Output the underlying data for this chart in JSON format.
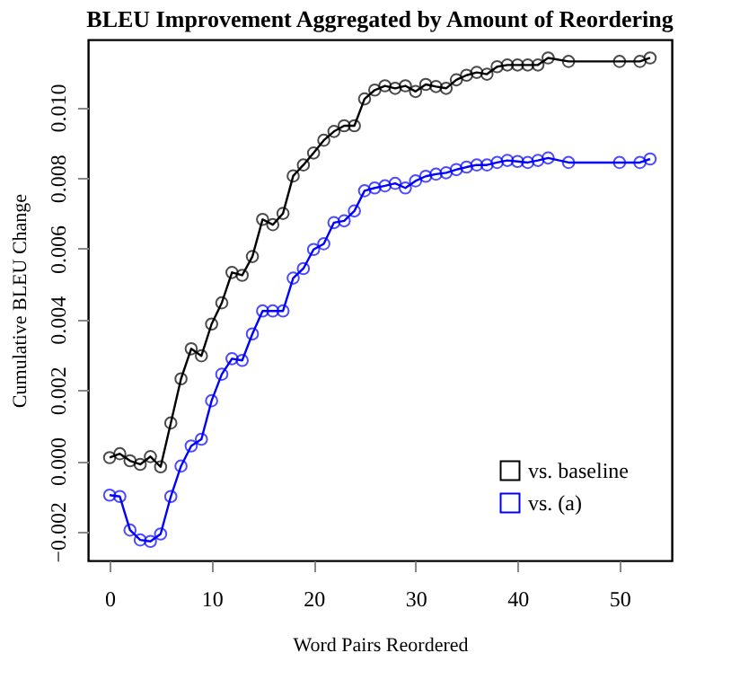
{
  "chart_data": {
    "type": "line",
    "title": "BLEU Improvement Aggregated by Amount of Reordering",
    "xlabel": "Word Pairs Reordered",
    "ylabel": "Cumulative BLEU Change",
    "x": [
      0,
      1,
      2,
      3,
      4,
      5,
      6,
      7,
      8,
      9,
      10,
      11,
      12,
      13,
      14,
      15,
      16,
      17,
      18,
      19,
      20,
      21,
      22,
      23,
      24,
      25,
      26,
      27,
      28,
      29,
      30,
      31,
      32,
      33,
      34,
      35,
      36,
      37,
      38,
      39,
      40,
      41,
      42,
      43,
      45,
      50,
      52,
      53
    ],
    "series": [
      {
        "name": "vs. baseline",
        "color": "#000000",
        "values": [
          9e-05,
          0.0002,
          0.0,
          -0.0001,
          0.00012,
          -0.00017,
          0.00107,
          0.00232,
          0.00317,
          0.00297,
          0.00387,
          0.00447,
          0.00533,
          0.00525,
          0.00578,
          0.00683,
          0.00668,
          0.007,
          0.00806,
          0.00837,
          0.00871,
          0.00907,
          0.00932,
          0.00948,
          0.00948,
          0.01024,
          0.01049,
          0.01061,
          0.01054,
          0.01061,
          0.01045,
          0.01065,
          0.01059,
          0.01054,
          0.01078,
          0.01091,
          0.01099,
          0.01094,
          0.01115,
          0.0112,
          0.0112,
          0.0112,
          0.0112,
          0.0114,
          0.0113,
          0.0113,
          0.0113,
          0.0114
        ]
      },
      {
        "name": "vs. (a)",
        "color": "#0000ff",
        "values": [
          -0.00097,
          -0.00101,
          -0.00196,
          -0.00224,
          -0.00228,
          -0.00207,
          -0.00101,
          -0.00015,
          0.00042,
          0.00061,
          0.0017,
          0.00245,
          0.00289,
          0.00284,
          0.00359,
          0.00424,
          0.00424,
          0.00424,
          0.00517,
          0.00544,
          0.00598,
          0.00614,
          0.00674,
          0.00679,
          0.00707,
          0.00764,
          0.00772,
          0.00778,
          0.00785,
          0.00772,
          0.00792,
          0.00805,
          0.00811,
          0.00815,
          0.00824,
          0.00831,
          0.00837,
          0.00837,
          0.00844,
          0.0085,
          0.00847,
          0.00844,
          0.0085,
          0.00857,
          0.00844,
          0.00844,
          0.00844,
          0.00854
        ]
      }
    ],
    "xlim": [
      -2.12,
      55.12
    ],
    "xticks": [
      0,
      10,
      20,
      30,
      40,
      50
    ],
    "ylim": [
      -0.00282,
      0.01192
    ],
    "yticks": [
      {
        "value": -0.002,
        "label": "−0.002"
      },
      {
        "value": 0.0,
        "label": "0.000"
      },
      {
        "value": 0.002,
        "label": "0.002"
      },
      {
        "value": 0.004,
        "label": "0.004"
      },
      {
        "value": 0.006,
        "label": "0.006"
      },
      {
        "value": 0.008,
        "label": "0.008"
      },
      {
        "value": 0.01,
        "label": "0.010"
      }
    ],
    "marker": "circle",
    "line_style": "solid",
    "grid": false,
    "legend": "bottom right"
  }
}
